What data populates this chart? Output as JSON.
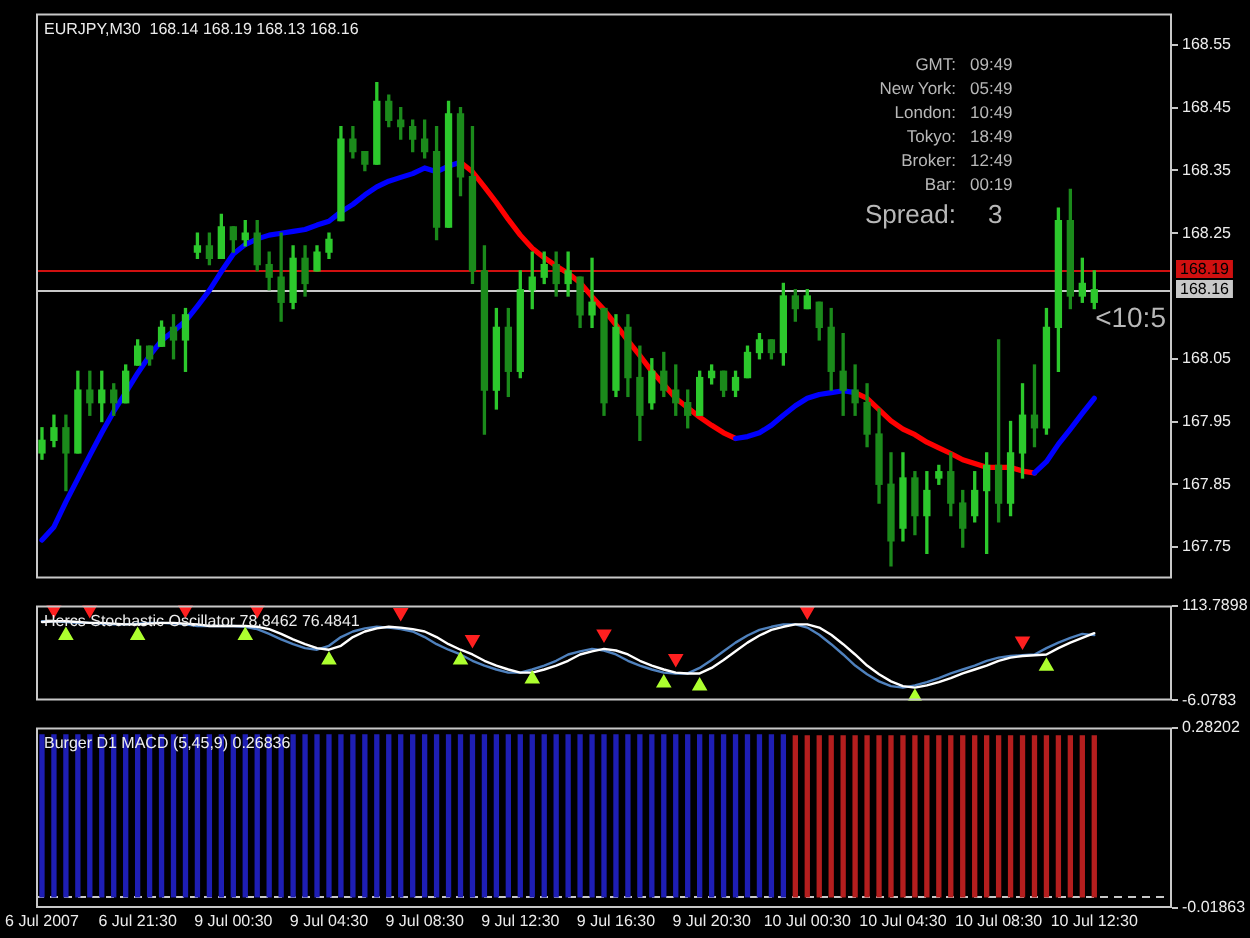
{
  "chart_data": [
    {
      "type": "candlestick",
      "title": "EURJPY,M30  168.14 168.19 168.13 168.16",
      "categories": [
        null,
        null,
        null,
        null,
        null,
        null,
        null,
        null,
        null,
        null,
        null,
        null,
        null,
        null,
        null,
        null,
        null,
        null,
        null,
        null,
        null,
        null,
        null,
        null,
        null,
        null,
        null,
        null,
        null,
        null,
        null,
        null,
        null,
        null,
        null,
        null,
        null,
        null,
        null,
        null,
        null,
        null,
        null,
        null,
        null,
        null,
        null,
        null,
        null,
        null,
        null,
        null,
        null,
        null,
        null,
        null,
        null,
        null,
        null,
        null,
        null,
        null,
        null,
        null,
        null,
        null,
        null,
        null,
        null,
        null,
        null,
        null,
        null,
        null,
        null,
        null,
        null,
        null,
        null,
        null,
        null,
        null,
        null,
        null,
        null,
        null,
        null,
        null,
        null
      ],
      "colors": [
        "#2cc82c",
        "#2cc82c",
        "#1b8a1b",
        "#2cc82c",
        "#1b8a1b",
        "#2cc82c",
        "#1b8a1b",
        "#2cc82c",
        "#2cc82c",
        "#1b8a1b",
        "#2cc82c",
        "#1b8a1b",
        "#2cc82c",
        "#2cc82c",
        "#1b8a1b",
        "#2cc82c",
        "#1b8a1b",
        "#2cc82c",
        "#1b8a1b",
        "#1b8a1b",
        "#1b8a1b",
        "#2cc82c",
        "#1b8a1b",
        "#2cc82c",
        "#2cc82c",
        "#2cc82c",
        "#1b8a1b",
        "#1b8a1b",
        "#2cc82c",
        "#1b8a1b",
        "#1b8a1b",
        "#1b8a1b",
        "#1b8a1b",
        "#1b8a1b",
        "#2cc82c",
        "#1b8a1b",
        "#1b8a1b",
        "#1b8a1b",
        "#2cc82c",
        "#1b8a1b",
        "#2cc82c",
        "#2cc82c",
        "#2cc82c",
        "#1b8a1b",
        "#2cc82c",
        "#1b8a1b",
        "#2cc82c",
        "#1b8a1b",
        "#2cc82c",
        "#1b8a1b",
        "#1b8a1b",
        "#2cc82c",
        "#1b8a1b",
        "#1b8a1b",
        "#1b8a1b",
        "#2cc82c",
        "#2cc82c",
        "#1b8a1b",
        "#2cc82c",
        "#2cc82c",
        "#2cc82c",
        "#1b8a1b",
        "#2cc82c",
        "#1b8a1b",
        "#2cc82c",
        "#1b8a1b",
        "#1b8a1b",
        "#1b8a1b",
        "#1b8a1b",
        "#1b8a1b",
        "#1b8a1b",
        "#1b8a1b",
        "#2cc82c",
        "#1b8a1b",
        "#2cc82c",
        "#2cc82c",
        "#1b8a1b",
        "#1b8a1b",
        "#2cc82c",
        "#2cc82c",
        "#1b8a1b",
        "#2cc82c",
        "#2cc82c",
        "#1b8a1b",
        "#2cc82c",
        "#2cc82c",
        "#1b8a1b",
        "#2cc82c",
        "#2cc82c"
      ],
      "ohlc": [
        [
          167.9,
          167.94,
          167.89,
          167.92
        ],
        [
          167.92,
          167.96,
          167.91,
          167.94
        ],
        [
          167.94,
          167.96,
          167.84,
          167.9
        ],
        [
          167.9,
          168.03,
          167.9,
          168.0
        ],
        [
          168.0,
          168.03,
          167.96,
          167.98
        ],
        [
          167.98,
          168.03,
          167.95,
          168.0
        ],
        [
          168.0,
          168.01,
          167.96,
          167.98
        ],
        [
          167.98,
          168.04,
          167.98,
          168.03
        ],
        [
          168.04,
          168.08,
          168.04,
          168.07
        ],
        [
          168.07,
          168.07,
          168.04,
          168.05
        ],
        [
          168.07,
          168.11,
          168.07,
          168.1
        ],
        [
          168.1,
          168.12,
          168.05,
          168.08
        ],
        [
          168.08,
          168.13,
          168.03,
          168.12
        ],
        [
          168.22,
          168.25,
          168.21,
          168.23
        ],
        [
          168.23,
          168.25,
          168.2,
          168.21
        ],
        [
          168.21,
          168.28,
          168.21,
          168.26
        ],
        [
          168.26,
          168.26,
          168.22,
          168.24
        ],
        [
          168.24,
          168.27,
          168.23,
          168.25
        ],
        [
          168.25,
          168.27,
          168.19,
          168.2
        ],
        [
          168.2,
          168.22,
          168.16,
          168.18
        ],
        [
          168.18,
          168.25,
          168.11,
          168.14
        ],
        [
          168.14,
          168.23,
          168.13,
          168.21
        ],
        [
          168.21,
          168.23,
          168.15,
          168.17
        ],
        [
          168.19,
          168.23,
          168.19,
          168.22
        ],
        [
          168.22,
          168.25,
          168.21,
          168.24
        ],
        [
          168.27,
          168.42,
          168.27,
          168.4
        ],
        [
          168.4,
          168.42,
          168.37,
          168.38
        ],
        [
          168.38,
          168.38,
          168.35,
          168.36
        ],
        [
          168.36,
          168.49,
          168.36,
          168.46
        ],
        [
          168.46,
          168.47,
          168.42,
          168.43
        ],
        [
          168.43,
          168.45,
          168.4,
          168.42
        ],
        [
          168.42,
          168.43,
          168.38,
          168.4
        ],
        [
          168.4,
          168.43,
          168.37,
          168.38
        ],
        [
          168.38,
          168.42,
          168.24,
          168.26
        ],
        [
          168.26,
          168.46,
          168.26,
          168.44
        ],
        [
          168.44,
          168.45,
          168.31,
          168.34
        ],
        [
          168.34,
          168.42,
          168.17,
          168.19
        ],
        [
          168.19,
          168.23,
          167.93,
          168.0
        ],
        [
          168.0,
          168.13,
          167.97,
          168.1
        ],
        [
          168.1,
          168.13,
          167.99,
          168.03
        ],
        [
          168.03,
          168.19,
          168.02,
          168.16
        ],
        [
          168.16,
          168.22,
          168.13,
          168.18
        ],
        [
          168.18,
          168.22,
          168.17,
          168.2
        ],
        [
          168.2,
          168.22,
          168.15,
          168.17
        ],
        [
          168.17,
          168.22,
          168.15,
          168.19
        ],
        [
          168.18,
          168.18,
          168.1,
          168.12
        ],
        [
          168.12,
          168.21,
          168.1,
          168.14
        ],
        [
          168.13,
          168.13,
          167.96,
          167.98
        ],
        [
          168.0,
          168.12,
          167.99,
          168.1
        ],
        [
          168.1,
          168.12,
          167.99,
          168.02
        ],
        [
          168.02,
          168.07,
          167.92,
          167.96
        ],
        [
          167.98,
          168.05,
          167.97,
          168.03
        ],
        [
          168.03,
          168.06,
          167.99,
          168.0
        ],
        [
          168.0,
          168.04,
          167.96,
          167.98
        ],
        [
          167.98,
          168.0,
          167.94,
          167.96
        ],
        [
          167.96,
          168.03,
          167.96,
          168.02
        ],
        [
          168.02,
          168.04,
          168.01,
          168.03
        ],
        [
          168.03,
          168.03,
          167.99,
          168.0
        ],
        [
          168.0,
          168.03,
          167.99,
          168.02
        ],
        [
          168.02,
          168.07,
          168.02,
          168.06
        ],
        [
          168.06,
          168.09,
          168.05,
          168.08
        ],
        [
          168.08,
          168.08,
          168.05,
          168.06
        ],
        [
          168.06,
          168.17,
          168.04,
          168.15
        ],
        [
          168.15,
          168.16,
          168.11,
          168.13
        ],
        [
          168.13,
          168.16,
          168.13,
          168.15
        ],
        [
          168.14,
          168.14,
          168.08,
          168.1
        ],
        [
          168.1,
          168.13,
          168.0,
          168.03
        ],
        [
          168.03,
          168.09,
          167.96,
          168.0
        ],
        [
          168.0,
          168.04,
          167.96,
          167.98
        ],
        [
          167.98,
          168.01,
          167.91,
          167.93
        ],
        [
          167.93,
          167.97,
          167.82,
          167.85
        ],
        [
          167.85,
          167.9,
          167.72,
          167.76
        ],
        [
          167.78,
          167.9,
          167.76,
          167.86
        ],
        [
          167.86,
          167.87,
          167.77,
          167.8
        ],
        [
          167.8,
          167.87,
          167.74,
          167.84
        ],
        [
          167.86,
          167.88,
          167.85,
          167.87
        ],
        [
          167.87,
          167.9,
          167.8,
          167.82
        ],
        [
          167.82,
          167.84,
          167.75,
          167.78
        ],
        [
          167.8,
          167.87,
          167.79,
          167.84
        ],
        [
          167.84,
          167.9,
          167.74,
          167.88
        ],
        [
          167.88,
          168.08,
          167.79,
          167.82
        ],
        [
          167.82,
          167.95,
          167.8,
          167.9
        ],
        [
          167.9,
          168.01,
          167.86,
          167.96
        ],
        [
          167.96,
          168.04,
          167.91,
          167.94
        ],
        [
          167.94,
          168.13,
          167.93,
          168.1
        ],
        [
          168.1,
          168.29,
          168.03,
          168.27
        ],
        [
          168.27,
          168.32,
          168.13,
          168.15
        ],
        [
          168.15,
          168.21,
          168.14,
          168.17
        ],
        [
          168.14,
          168.19,
          168.13,
          168.16
        ]
      ],
      "series": [
        {
          "type": "line",
          "color": "#0000ff",
          "values": [
            167.761,
            167.782,
            167.822,
            167.859,
            167.896,
            167.932,
            167.966,
            167.996,
            168.027,
            168.055,
            168.079,
            168.094,
            168.11,
            168.134,
            168.159,
            168.189,
            168.217,
            168.232,
            168.241,
            168.247,
            168.25,
            168.253,
            168.256,
            168.263,
            168.269,
            168.284,
            168.296,
            168.311,
            168.324,
            168.333,
            168.339,
            168.345,
            168.354,
            168.348,
            168.357,
            168.363,
            null,
            null,
            null,
            null,
            null,
            null,
            null,
            null,
            null,
            null,
            null,
            null,
            null,
            null,
            null,
            null,
            null,
            null,
            null,
            null,
            null,
            null,
            167.923,
            167.926,
            167.932,
            167.944,
            167.96,
            167.975,
            167.987,
            167.993,
            167.996,
            167.999,
            167.996,
            null,
            null,
            null,
            null,
            null,
            null,
            null,
            null,
            null,
            null,
            null,
            null,
            null,
            null,
            167.868,
            167.886,
            167.914,
            167.938,
            167.963,
            167.987
          ]
        },
        {
          "type": "line",
          "color": "#ff0000",
          "values": [
            null,
            null,
            null,
            null,
            null,
            null,
            null,
            null,
            null,
            null,
            null,
            null,
            null,
            null,
            null,
            null,
            null,
            null,
            null,
            null,
            null,
            null,
            null,
            null,
            null,
            null,
            null,
            null,
            null,
            null,
            null,
            null,
            null,
            null,
            null,
            168.363,
            168.348,
            168.324,
            168.299,
            168.272,
            168.247,
            168.226,
            168.211,
            168.198,
            168.186,
            168.171,
            168.149,
            168.128,
            168.104,
            168.079,
            168.055,
            168.03,
            168.009,
            167.987,
            167.972,
            167.957,
            167.944,
            167.932,
            167.923,
            null,
            null,
            null,
            null,
            null,
            null,
            null,
            null,
            null,
            167.996,
            167.987,
            167.969,
            167.951,
            167.938,
            167.929,
            167.917,
            167.908,
            167.899,
            167.889,
            167.883,
            167.877,
            167.877,
            167.877,
            167.871,
            167.868,
            null,
            null,
            null,
            null,
            null
          ]
        }
      ],
      "ylim": [
        167.7,
        168.6
      ],
      "yticks": [
        167.75,
        167.85,
        167.95,
        168.05,
        168.25,
        168.35,
        168.45,
        168.55
      ],
      "ref_lines": [
        {
          "axis": "y",
          "value": 168.19,
          "label": "168.19",
          "color": "#d01010"
        },
        {
          "axis": "y",
          "value": 168.16,
          "label": "168.16",
          "color": "#c8c8c8"
        }
      ],
      "annotations": [
        "<10:5",
        "GMT:",
        "09:49",
        "New York:",
        "05:49",
        "London:",
        "10:49",
        "Tokyo:",
        "18:49",
        "Broker:",
        "12:49",
        "Bar:",
        "00:19",
        "Spread:",
        "3"
      ],
      "tick_labels": "y"
    },
    {
      "type": "line",
      "title": "Hercs Stochastic Oscillator 78.8462 76.4841",
      "categories": [
        null,
        null,
        null,
        null,
        null,
        null,
        null,
        null,
        null,
        null,
        null,
        null,
        null,
        null,
        null,
        null,
        null,
        null,
        null,
        null,
        null,
        null,
        null,
        null,
        null,
        null,
        null,
        null,
        null,
        null,
        null,
        null,
        null,
        null,
        null,
        null,
        null,
        null,
        null,
        null,
        null,
        null,
        null,
        null,
        null,
        null,
        null,
        null,
        null,
        null,
        null,
        null,
        null,
        null,
        null,
        null,
        null,
        null,
        null,
        null,
        null,
        null,
        null,
        null,
        null,
        null,
        null,
        null,
        null,
        null,
        null,
        null,
        null,
        null,
        null,
        null,
        null,
        null,
        null,
        null,
        null,
        null,
        null,
        null,
        null,
        null,
        null,
        null,
        null
      ],
      "series": [
        {
          "color": "#ffffff",
          "values": [
            93,
            94,
            94,
            93,
            92,
            92,
            91,
            90,
            90,
            91,
            92,
            92,
            91,
            90,
            88,
            88,
            88,
            88,
            87,
            84,
            78,
            71,
            65,
            60,
            58,
            63,
            74,
            81,
            85,
            87,
            86,
            84,
            81,
            74,
            65,
            58,
            52,
            44,
            38,
            33,
            29,
            29,
            33,
            38,
            44,
            52,
            56,
            59,
            57,
            52,
            44,
            38,
            33,
            29,
            28,
            28,
            35,
            45,
            56,
            67,
            76,
            83,
            87,
            90,
            90,
            86,
            77,
            65,
            52,
            38,
            27,
            18,
            12,
            10,
            13,
            17,
            22,
            28,
            33,
            38,
            44,
            48,
            50,
            51,
            52,
            60,
            67,
            73,
            78.8462
          ]
        },
        {
          "color": "#4f81bd",
          "values": [
            94,
            94,
            93,
            92,
            92,
            91,
            90,
            90,
            91,
            92,
            92,
            91,
            90,
            88,
            88,
            88,
            88,
            87,
            84,
            78,
            71,
            65,
            60,
            58,
            63,
            74,
            81,
            85,
            87,
            86,
            84,
            81,
            74,
            65,
            58,
            52,
            44,
            38,
            33,
            29,
            29,
            33,
            38,
            44,
            52,
            56,
            59,
            57,
            52,
            44,
            38,
            33,
            29,
            28,
            28,
            35,
            45,
            56,
            67,
            76,
            83,
            87,
            90,
            90,
            86,
            77,
            65,
            52,
            38,
            27,
            18,
            12,
            10,
            13,
            17,
            22,
            28,
            33,
            38,
            44,
            48,
            50,
            51,
            52,
            60,
            67,
            73,
            78,
            76.4841
          ]
        },
        {
          "type": "scatter",
          "marker": "triangle",
          "color": "#ff2020",
          "values": [
            null,
            109,
            null,
            null,
            109,
            null,
            null,
            null,
            null,
            null,
            null,
            null,
            109,
            null,
            null,
            null,
            null,
            null,
            109,
            null,
            null,
            null,
            null,
            null,
            null,
            null,
            null,
            null,
            null,
            null,
            105,
            null,
            null,
            null,
            null,
            null,
            71,
            null,
            null,
            null,
            null,
            null,
            null,
            null,
            null,
            null,
            null,
            78,
            null,
            null,
            null,
            null,
            null,
            47,
            null,
            null,
            null,
            null,
            null,
            null,
            null,
            null,
            null,
            null,
            107,
            null,
            null,
            null,
            null,
            null,
            null,
            null,
            null,
            null,
            null,
            null,
            null,
            null,
            null,
            null,
            null,
            null,
            69,
            null,
            null,
            null,
            null,
            null,
            null
          ]
        },
        {
          "type": "scatter",
          "marker": "triangle",
          "color": "#adff2f",
          "values": [
            null,
            null,
            76,
            null,
            null,
            null,
            null,
            null,
            76,
            null,
            null,
            null,
            null,
            null,
            null,
            null,
            null,
            76,
            null,
            null,
            null,
            null,
            null,
            null,
            45,
            null,
            null,
            null,
            null,
            null,
            null,
            null,
            null,
            null,
            null,
            45,
            null,
            null,
            null,
            null,
            null,
            21,
            null,
            null,
            null,
            null,
            null,
            null,
            null,
            null,
            null,
            null,
            16,
            null,
            null,
            12,
            null,
            null,
            null,
            null,
            null,
            null,
            null,
            null,
            null,
            null,
            null,
            null,
            null,
            null,
            null,
            null,
            null,
            -2,
            null,
            null,
            null,
            null,
            null,
            null,
            null,
            null,
            null,
            null,
            37,
            null,
            null,
            null,
            null
          ]
        }
      ],
      "ylim": [
        -6.0783,
        113.7898
      ],
      "yticks": [
        -6.0783,
        113.7898
      ],
      "tick_labels": "y"
    },
    {
      "type": "bar",
      "title": "Burger D1 MACD (5,45,9) 0.26836",
      "categories": [
        "6 Jul 2007",
        null,
        null,
        null,
        null,
        null,
        null,
        null,
        "6 Jul 21:30",
        null,
        null,
        null,
        null,
        null,
        null,
        null,
        "9 Jul 00:30",
        null,
        null,
        null,
        null,
        null,
        null,
        null,
        "9 Jul 04:30",
        null,
        null,
        null,
        null,
        null,
        null,
        null,
        "9 Jul 08:30",
        null,
        null,
        null,
        null,
        null,
        null,
        null,
        "9 Jul 12:30",
        null,
        null,
        null,
        null,
        null,
        null,
        null,
        "9 Jul 16:30",
        null,
        null,
        null,
        null,
        null,
        null,
        null,
        "9 Jul 20:30",
        null,
        null,
        null,
        null,
        null,
        null,
        null,
        "10 Jul 00:30",
        null,
        null,
        null,
        null,
        null,
        null,
        null,
        "10 Jul 04:30",
        null,
        null,
        null,
        null,
        null,
        null,
        null,
        "10 Jul 08:30",
        null,
        null,
        null,
        null,
        null,
        null,
        null,
        "10 Jul 12:30"
      ],
      "values": [
        0.27,
        0.27,
        0.27,
        0.27,
        0.27,
        0.27,
        0.27,
        0.27,
        0.27,
        0.27,
        0.27,
        0.27,
        0.27,
        0.27,
        0.27,
        0.27,
        0.27,
        0.27,
        0.27,
        0.27,
        0.27,
        0.27,
        0.27,
        0.27,
        0.27,
        0.27,
        0.27,
        0.27,
        0.27,
        0.27,
        0.27,
        0.27,
        0.27,
        0.27,
        0.27,
        0.27,
        0.27,
        0.27,
        0.27,
        0.27,
        0.27,
        0.27,
        0.27,
        0.27,
        0.27,
        0.27,
        0.27,
        0.27,
        0.27,
        0.27,
        0.27,
        0.27,
        0.27,
        0.27,
        0.27,
        0.27,
        0.27,
        0.27,
        0.27,
        0.27,
        0.27,
        0.27,
        0.27,
        0.26836,
        0.26836,
        0.26836,
        0.26836,
        0.26836,
        0.26836,
        0.26836,
        0.26836,
        0.26836,
        0.26836,
        0.26836,
        0.26836,
        0.26836,
        0.26836,
        0.26836,
        0.26836,
        0.26836,
        0.26836,
        0.26836,
        0.26836,
        0.26836,
        0.26836,
        0.26836,
        0.26836,
        0.26836,
        0.26836
      ],
      "colors": [
        "#1e1eb4",
        "#1e1eb4",
        "#1e1eb4",
        "#1e1eb4",
        "#1e1eb4",
        "#1e1eb4",
        "#1e1eb4",
        "#1e1eb4",
        "#1e1eb4",
        "#1e1eb4",
        "#1e1eb4",
        "#1e1eb4",
        "#1e1eb4",
        "#1e1eb4",
        "#1e1eb4",
        "#1e1eb4",
        "#1e1eb4",
        "#1e1eb4",
        "#1e1eb4",
        "#1e1eb4",
        "#1e1eb4",
        "#1e1eb4",
        "#1e1eb4",
        "#1e1eb4",
        "#1e1eb4",
        "#1e1eb4",
        "#1e1eb4",
        "#1e1eb4",
        "#1e1eb4",
        "#1e1eb4",
        "#1e1eb4",
        "#1e1eb4",
        "#1e1eb4",
        "#1e1eb4",
        "#1e1eb4",
        "#1e1eb4",
        "#1e1eb4",
        "#1e1eb4",
        "#1e1eb4",
        "#1e1eb4",
        "#1e1eb4",
        "#1e1eb4",
        "#1e1eb4",
        "#1e1eb4",
        "#1e1eb4",
        "#1e1eb4",
        "#1e1eb4",
        "#1e1eb4",
        "#1e1eb4",
        "#1e1eb4",
        "#1e1eb4",
        "#1e1eb4",
        "#1e1eb4",
        "#1e1eb4",
        "#1e1eb4",
        "#1e1eb4",
        "#1e1eb4",
        "#1e1eb4",
        "#1e1eb4",
        "#1e1eb4",
        "#1e1eb4",
        "#1e1eb4",
        "#1e1eb4",
        "#b41e1e",
        "#b41e1e",
        "#b41e1e",
        "#b41e1e",
        "#b41e1e",
        "#b41e1e",
        "#b41e1e",
        "#b41e1e",
        "#b41e1e",
        "#b41e1e",
        "#b41e1e",
        "#b41e1e",
        "#b41e1e",
        "#b41e1e",
        "#b41e1e",
        "#b41e1e",
        "#b41e1e",
        "#b41e1e",
        "#b41e1e",
        "#b41e1e",
        "#b41e1e",
        "#b41e1e",
        "#b41e1e",
        "#b41e1e",
        "#b41e1e",
        "#b41e1e"
      ],
      "ylim": [
        -0.01863,
        0.28202
      ],
      "yticks": [
        -0.01863,
        0.28202
      ],
      "ref_lines": [
        {
          "axis": "y",
          "value": 0,
          "color": "#c8c8c8",
          "line_style": "dashed"
        }
      ]
    }
  ]
}
